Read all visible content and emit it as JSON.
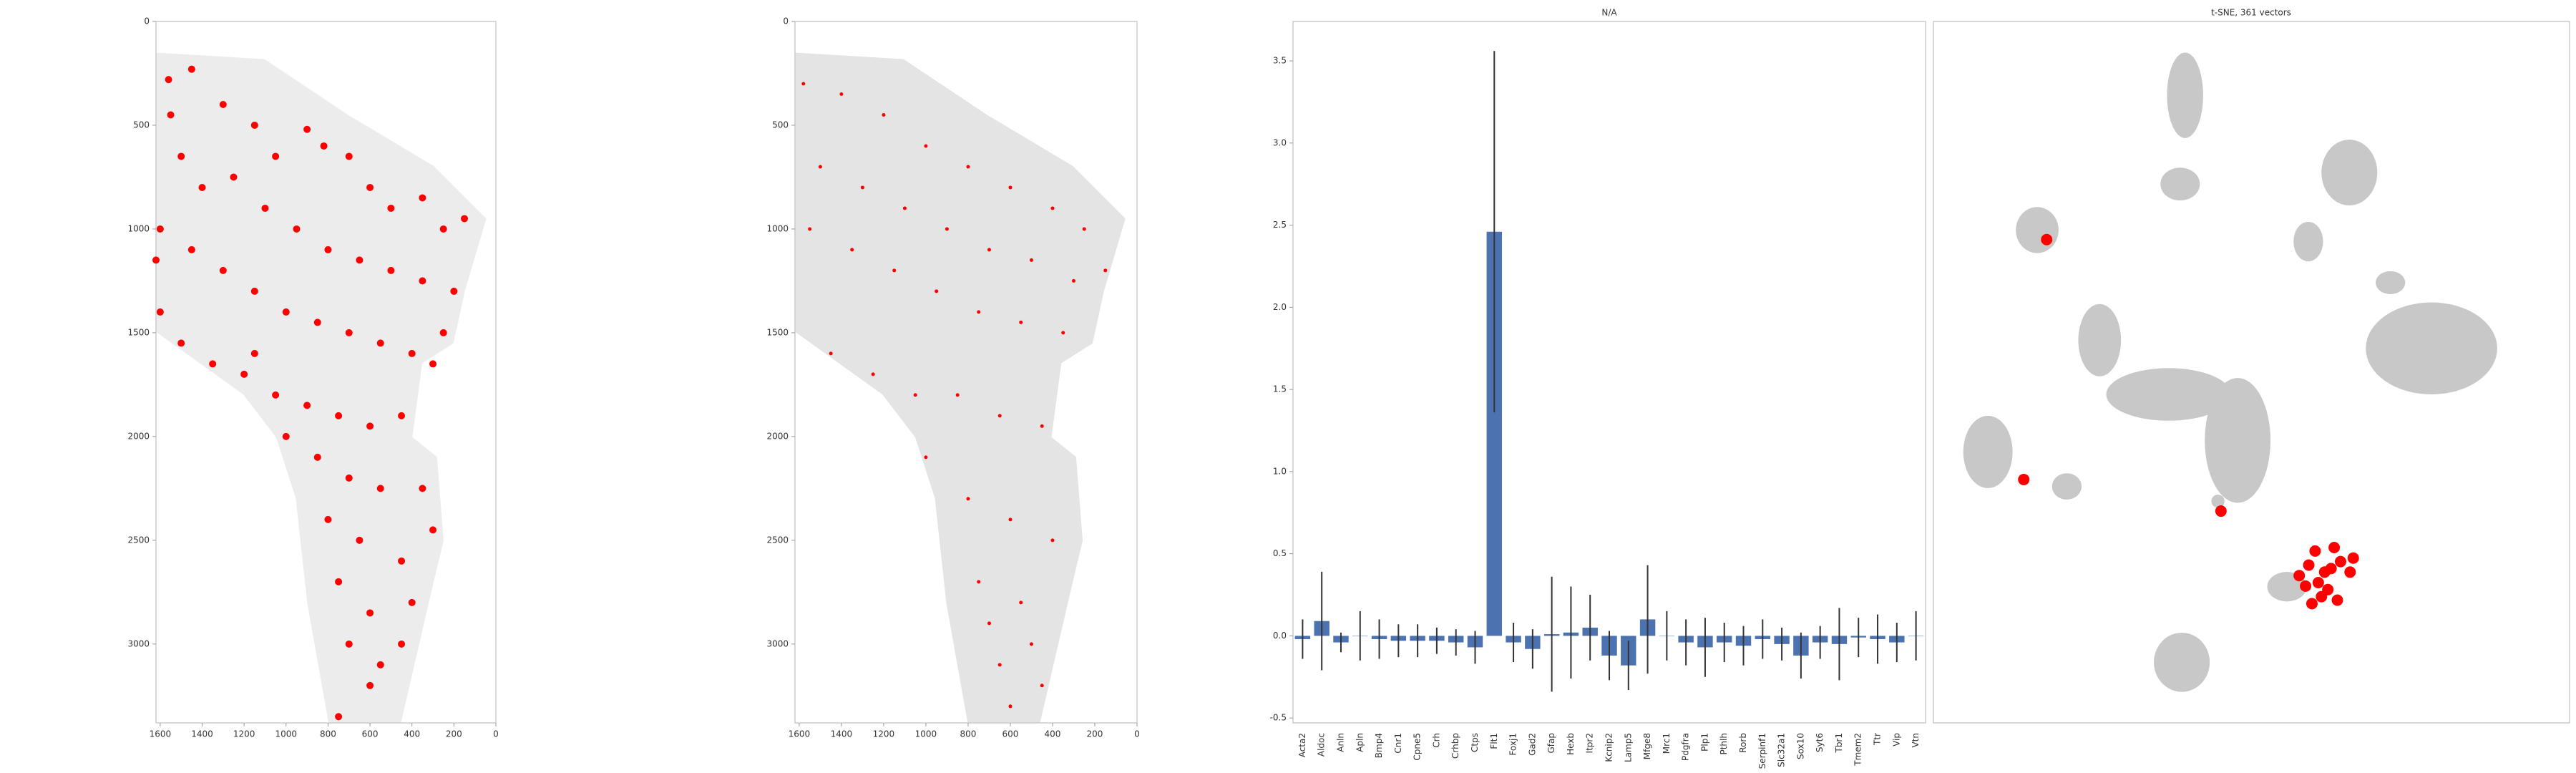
{
  "chart_data": [
    {
      "type": "scatter",
      "xlim": [
        1620,
        0
      ],
      "ylim": [
        3380,
        0
      ],
      "xticks": [
        1600,
        1400,
        1200,
        1000,
        800,
        600,
        400,
        200,
        0
      ],
      "yticks": [
        0,
        500,
        1000,
        1500,
        2000,
        2500,
        3000
      ],
      "series": [
        {
          "color": "#ff0000",
          "x": [
            1560,
            1450,
            1300,
            1150,
            1050,
            900,
            820,
            700,
            600,
            500,
            350,
            250,
            150,
            1550,
            1500,
            1400,
            1250,
            1100,
            950,
            800,
            650,
            500,
            350,
            200,
            1600,
            1450,
            1300,
            1150,
            1000,
            850,
            700,
            550,
            400,
            300,
            1600,
            1500,
            1350,
            1200,
            1050,
            900,
            750,
            600,
            450,
            1000,
            850,
            700,
            550,
            350,
            800,
            650,
            450,
            300,
            750,
            600,
            400,
            700,
            550,
            450,
            600,
            750,
            1620,
            1150,
            250
          ],
          "y": [
            280,
            230,
            400,
            500,
            650,
            520,
            600,
            650,
            800,
            900,
            850,
            1000,
            950,
            450,
            650,
            800,
            750,
            900,
            1000,
            1100,
            1150,
            1200,
            1250,
            1300,
            1000,
            1100,
            1200,
            1300,
            1400,
            1450,
            1500,
            1550,
            1600,
            1650,
            1400,
            1550,
            1650,
            1700,
            1800,
            1850,
            1900,
            1950,
            1900,
            2000,
            2100,
            2200,
            2250,
            2250,
            2400,
            2500,
            2600,
            2450,
            2700,
            2850,
            2800,
            3000,
            3100,
            3000,
            3200,
            3350,
            1150,
            1600,
            1500
          ]
        }
      ]
    },
    {
      "type": "scatter",
      "xlim": [
        1620,
        0
      ],
      "ylim": [
        3380,
        0
      ],
      "xticks": [
        1600,
        1400,
        1200,
        1000,
        800,
        600,
        400,
        200,
        0
      ],
      "yticks": [
        0,
        500,
        1000,
        1500,
        2000,
        2500,
        3000
      ],
      "series": [
        {
          "color": "#ff0000",
          "x": [
            1580,
            1400,
            1200,
            1000,
            800,
            600,
            400,
            250,
            1500,
            1300,
            1100,
            900,
            700,
            500,
            300,
            1550,
            1350,
            1150,
            950,
            750,
            550,
            350,
            150,
            1450,
            1250,
            1050,
            850,
            650,
            450,
            1000,
            800,
            600,
            400,
            750,
            550,
            700,
            500,
            650,
            450,
            600
          ],
          "y": [
            300,
            350,
            450,
            600,
            700,
            800,
            900,
            1000,
            700,
            800,
            900,
            1000,
            1100,
            1150,
            1250,
            1000,
            1100,
            1200,
            1300,
            1400,
            1450,
            1500,
            1200,
            1600,
            1700,
            1800,
            1800,
            1900,
            1950,
            2100,
            2300,
            2400,
            2500,
            2700,
            2800,
            2900,
            3000,
            3100,
            3200,
            3300
          ]
        }
      ]
    },
    {
      "type": "bar",
      "title": "N/A",
      "color": "#4c72b0",
      "categories": [
        "Acta2",
        "Aldoc",
        "Anln",
        "Apln",
        "Bmp4",
        "Cnr1",
        "Cpne5",
        "Crh",
        "Crhbp",
        "Ctps",
        "Flt1",
        "Foxj1",
        "Gad2",
        "Gfap",
        "Hexb",
        "Itpr2",
        "Kcnip2",
        "Lamp5",
        "Mfge8",
        "Mrc1",
        "Pdgfra",
        "Plp1",
        "Pthlh",
        "Rorb",
        "Serpinf1",
        "Slc32a1",
        "Sox10",
        "Syt6",
        "Tbr1",
        "Tmem2",
        "Ttr",
        "Vip",
        "Vtn"
      ],
      "values": [
        -0.02,
        0.09,
        -0.04,
        0.0,
        -0.02,
        -0.03,
        -0.03,
        -0.03,
        -0.04,
        -0.07,
        2.46,
        -0.04,
        -0.08,
        0.01,
        0.02,
        0.05,
        -0.12,
        -0.18,
        0.1,
        0.0,
        -0.04,
        -0.07,
        -0.04,
        -0.06,
        -0.02,
        -0.05,
        -0.12,
        -0.04,
        -0.05,
        -0.01,
        -0.02,
        -0.04,
        0.0
      ],
      "errors": [
        0.12,
        0.3,
        0.06,
        0.15,
        0.12,
        0.1,
        0.1,
        0.08,
        0.08,
        0.1,
        1.1,
        0.12,
        0.12,
        0.35,
        0.28,
        0.2,
        0.15,
        0.15,
        0.33,
        0.15,
        0.14,
        0.18,
        0.12,
        0.12,
        0.12,
        0.1,
        0.14,
        0.1,
        0.22,
        0.12,
        0.15,
        0.12,
        0.15
      ],
      "ylim": [
        -0.53,
        3.74
      ],
      "yticks": [
        -0.5,
        {
          "value": 0,
          "label": "0.0"
        },
        0.5,
        {
          "value": 1,
          "label": "1.0"
        },
        1.5,
        {
          "value": 2,
          "label": "2.0"
        },
        2.5,
        {
          "value": 3,
          "label": "3.0"
        },
        3.5
      ]
    },
    {
      "type": "scatter",
      "title": "t-SNE, 361 vectors",
      "xlim": [
        0,
        100
      ],
      "ylim": [
        0,
        100
      ],
      "series": [
        {
          "color": "#ff0000",
          "x": [
            17.8,
            14.2,
            45.2,
            61.5,
            59,
            64,
            62,
            57.5,
            60,
            63,
            65.5,
            61,
            58.5,
            63.5,
            60.5,
            66,
            62.5,
            59.5
          ],
          "y": [
            68.9,
            34.7,
            30.2,
            21.5,
            22.5,
            23,
            19,
            21,
            24.5,
            25,
            21.5,
            18,
            19.5,
            17.5,
            20,
            23.5,
            22,
            17
          ]
        }
      ]
    }
  ]
}
